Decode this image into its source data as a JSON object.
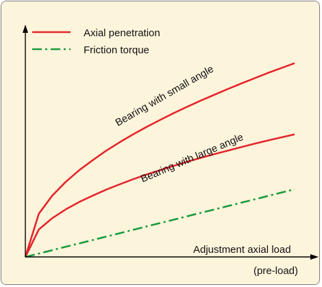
{
  "chart_data": {
    "type": "line",
    "background": "#fdf4dc",
    "x": [
      0,
      0.05,
      0.1,
      0.15,
      0.2,
      0.25,
      0.3,
      0.35,
      0.4,
      0.45,
      0.5,
      0.55,
      0.6,
      0.65,
      0.7,
      0.75,
      0.8,
      0.85,
      0.9,
      0.95,
      1.0
    ],
    "xlim": [
      0,
      1.0
    ],
    "ylim": [
      0,
      1.0
    ],
    "legend": {
      "placement": "top-left",
      "entries": [
        {
          "label": "Axial penetration",
          "color": "#e3262b",
          "style": "solid"
        },
        {
          "label": "Friction torque",
          "color": "#179a3c",
          "style": "dash-dot"
        }
      ]
    },
    "series": [
      {
        "name": "",
        "kind": "axial-penetration",
        "label": "Bearing with small angle",
        "color": "#e3262b",
        "dash": "solid",
        "values": [
          0,
          0.211,
          0.299,
          0.366,
          0.423,
          0.472,
          0.518,
          0.559,
          0.598,
          0.634,
          0.668,
          0.701,
          0.732,
          0.762,
          0.79,
          0.818,
          0.845,
          0.871,
          0.897,
          0.921,
          0.945
        ]
      },
      {
        "name": "",
        "kind": "axial-penetration",
        "label": "Bearing with large angle",
        "color": "#e3262b",
        "dash": "solid",
        "values": [
          0,
          0.134,
          0.189,
          0.232,
          0.268,
          0.299,
          0.328,
          0.354,
          0.379,
          0.402,
          0.423,
          0.444,
          0.464,
          0.483,
          0.501,
          0.518,
          0.535,
          0.552,
          0.568,
          0.583,
          0.598
        ]
      },
      {
        "name": "",
        "kind": "friction-torque",
        "label": "",
        "color": "#179a3c",
        "dash": "dash-dot",
        "values": [
          0,
          0.0165,
          0.033,
          0.0495,
          0.066,
          0.0825,
          0.099,
          0.1155,
          0.132,
          0.1485,
          0.165,
          0.1815,
          0.198,
          0.2145,
          0.231,
          0.2475,
          0.264,
          0.2805,
          0.297,
          0.3135,
          0.33
        ]
      }
    ],
    "xlabel": "Adjustment axial load",
    "xlabel_sub": "(pre-load)",
    "ylabel": ""
  }
}
